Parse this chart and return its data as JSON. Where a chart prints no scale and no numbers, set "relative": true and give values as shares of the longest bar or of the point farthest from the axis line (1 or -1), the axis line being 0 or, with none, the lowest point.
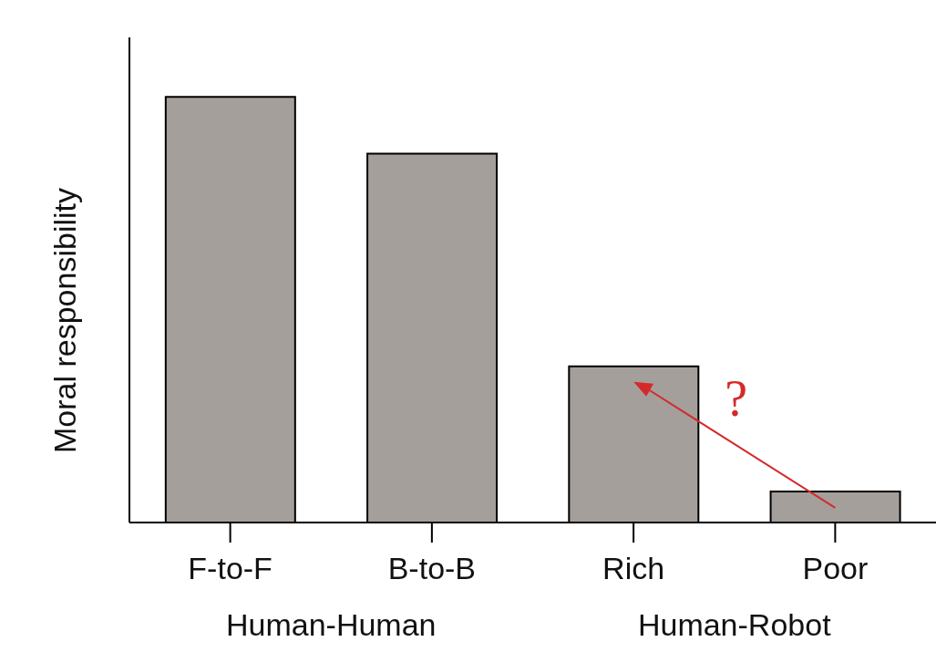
{
  "chart_data": {
    "type": "bar",
    "relative": true,
    "ylabel": "Moral responsibility",
    "categories": [
      "F-to-F",
      "B-to-B",
      "Rich",
      "Poor"
    ],
    "values": [
      1,
      0.867,
      0.367,
      0.073
    ],
    "color": "#a59f9c",
    "annotations": [
      "Human-Human",
      "Human-Robot",
      "?"
    ]
  }
}
